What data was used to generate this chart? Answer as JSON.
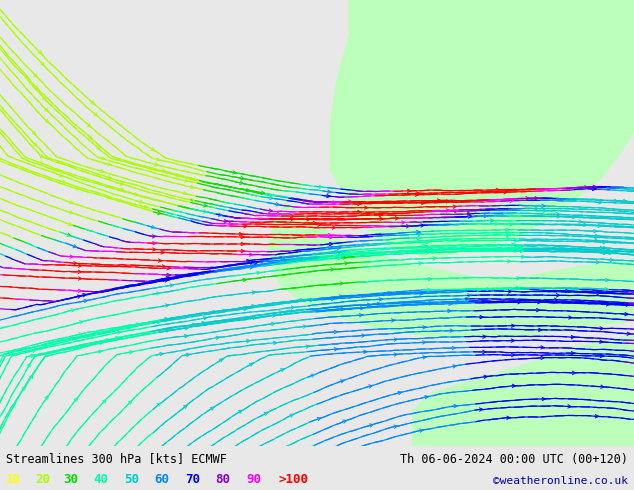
{
  "title_left": "Streamlines 300 hPa [kts] ECMWF",
  "title_right": "Th 06-06-2024 00:00 UTC (00+120)",
  "credit": "©weatheronline.co.uk",
  "legend_values": [
    "10",
    "20",
    "30",
    "40",
    "50",
    "60",
    "70",
    "80",
    "90",
    ">100"
  ],
  "legend_colors": [
    "#ffff00",
    "#aaff00",
    "#00dd00",
    "#00ffaa",
    "#00cccc",
    "#0088ff",
    "#0000ff",
    "#8800cc",
    "#ff00ff",
    "#ff0000"
  ],
  "bg_color": "#e8e8e8",
  "map_bg": "#f0f0f0",
  "green_fill": "#bbffbb",
  "title_color": "#000000",
  "credit_color": "#0000bb",
  "figsize": [
    6.34,
    4.9
  ],
  "dpi": 100
}
